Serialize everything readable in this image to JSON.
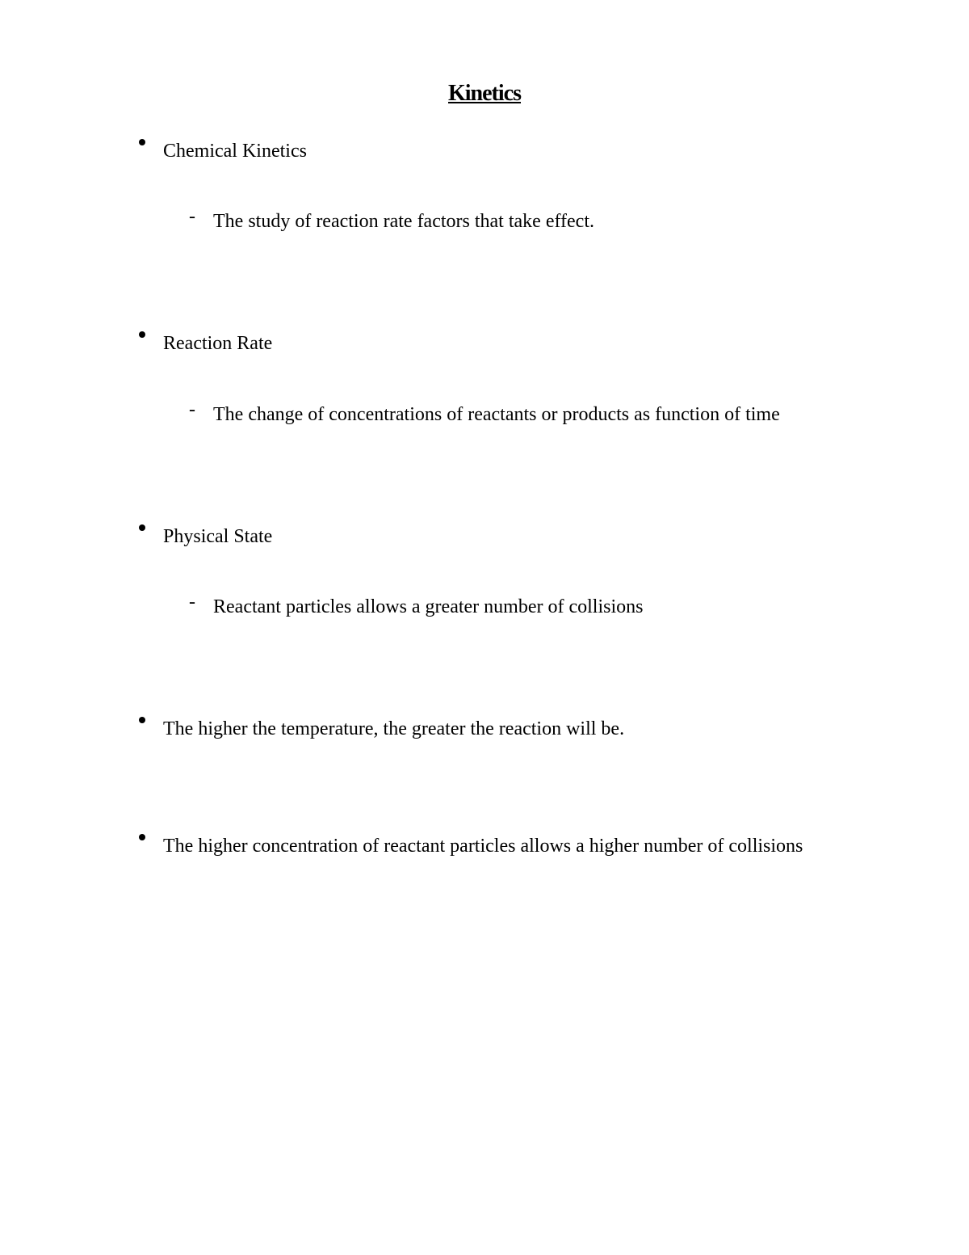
{
  "title": "Kinetics",
  "bullets": [
    {
      "label": "Chemical Kinetics",
      "sub": "The study of reaction rate factors that take effect."
    },
    {
      "label": "Reaction Rate",
      "sub": "The change of concentrations of reactants or products as function of time"
    },
    {
      "label": "Physical State",
      "sub": "Reactant particles allows a greater number of collisions"
    },
    {
      "label": "The higher the temperature, the greater the reaction will be.",
      "sub": null
    },
    {
      "label": "The higher concentration of reactant particles allows a higher number of collisions",
      "sub": null
    }
  ],
  "styling": {
    "background_color": "#ffffff",
    "text_color": "#000000",
    "title_fontsize": 28,
    "body_fontsize": 24,
    "font_family": "Georgia, serif",
    "bullet_style": "disc",
    "sub_bullet_style": "dash"
  }
}
